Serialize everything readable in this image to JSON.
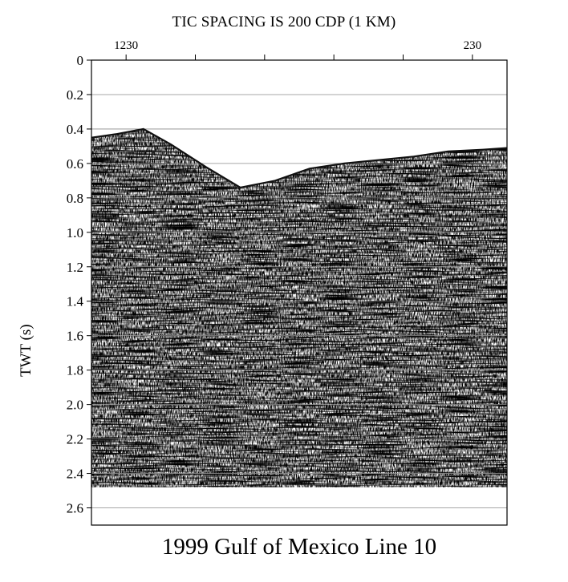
{
  "chart_data": {
    "type": "image",
    "title": "1999 Gulf of Mexico Line 10",
    "top_label": "TIC SPACING IS 200 CDP (1 KM)",
    "ylabel": "TWT (s)",
    "ylim": [
      2.7,
      0
    ],
    "yticks": [
      "0",
      "0.2",
      "0.4",
      "0.6",
      "0.8",
      "1.0",
      "1.2",
      "1.4",
      "1.6",
      "1.8",
      "2.0",
      "2.2",
      "2.4",
      "2.6"
    ],
    "ytick_values": [
      0,
      0.2,
      0.4,
      0.6,
      0.8,
      1.0,
      1.2,
      1.4,
      1.6,
      1.8,
      2.0,
      2.2,
      2.4,
      2.6
    ],
    "cdp_labels": [
      {
        "label": "1230",
        "cdp": 1230
      },
      {
        "label": "230",
        "cdp": 230
      }
    ],
    "cdp_tick_spacing": 200,
    "cdp_range": [
      1330,
      130
    ],
    "record_end_twt": 2.48,
    "grid": true,
    "seafloor_twt": [
      {
        "cdp": 1330,
        "twt": 0.45
      },
      {
        "cdp": 1260,
        "twt": 0.43
      },
      {
        "cdp": 1180,
        "twt": 0.4
      },
      {
        "cdp": 1100,
        "twt": 0.49
      },
      {
        "cdp": 1000,
        "twt": 0.62
      },
      {
        "cdp": 900,
        "twt": 0.74
      },
      {
        "cdp": 800,
        "twt": 0.7
      },
      {
        "cdp": 700,
        "twt": 0.63
      },
      {
        "cdp": 600,
        "twt": 0.6
      },
      {
        "cdp": 500,
        "twt": 0.58
      },
      {
        "cdp": 400,
        "twt": 0.56
      },
      {
        "cdp": 300,
        "twt": 0.53
      },
      {
        "cdp": 200,
        "twt": 0.52
      },
      {
        "cdp": 130,
        "twt": 0.51
      }
    ]
  }
}
